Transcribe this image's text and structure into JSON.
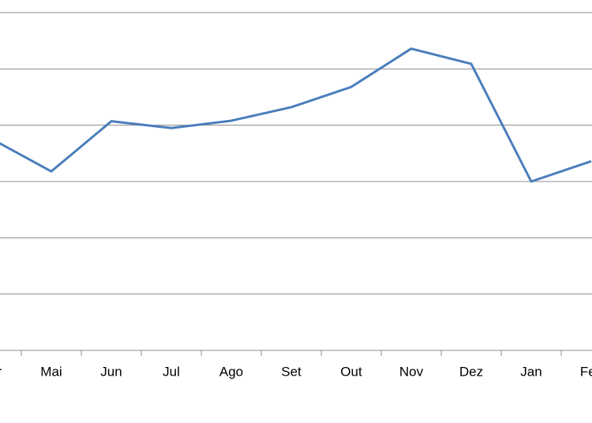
{
  "chart_data": {
    "type": "line",
    "categories": [
      "Abr",
      "Mai",
      "Jun",
      "Jul",
      "Ago",
      "Set",
      "Out",
      "Nov",
      "Dez",
      "Jan",
      "Fev"
    ],
    "series": [
      {
        "color": "#4a7ebb",
        "values": [
          3.76,
          3.18,
          4.07,
          3.95,
          4.08,
          4.32,
          4.68,
          5.36,
          5.09,
          3.0,
          3.36
        ]
      }
    ],
    "ylim": [
      0,
      6
    ],
    "grid_lines": [
      1,
      2,
      3,
      4,
      5,
      6
    ],
    "grid": true
  }
}
